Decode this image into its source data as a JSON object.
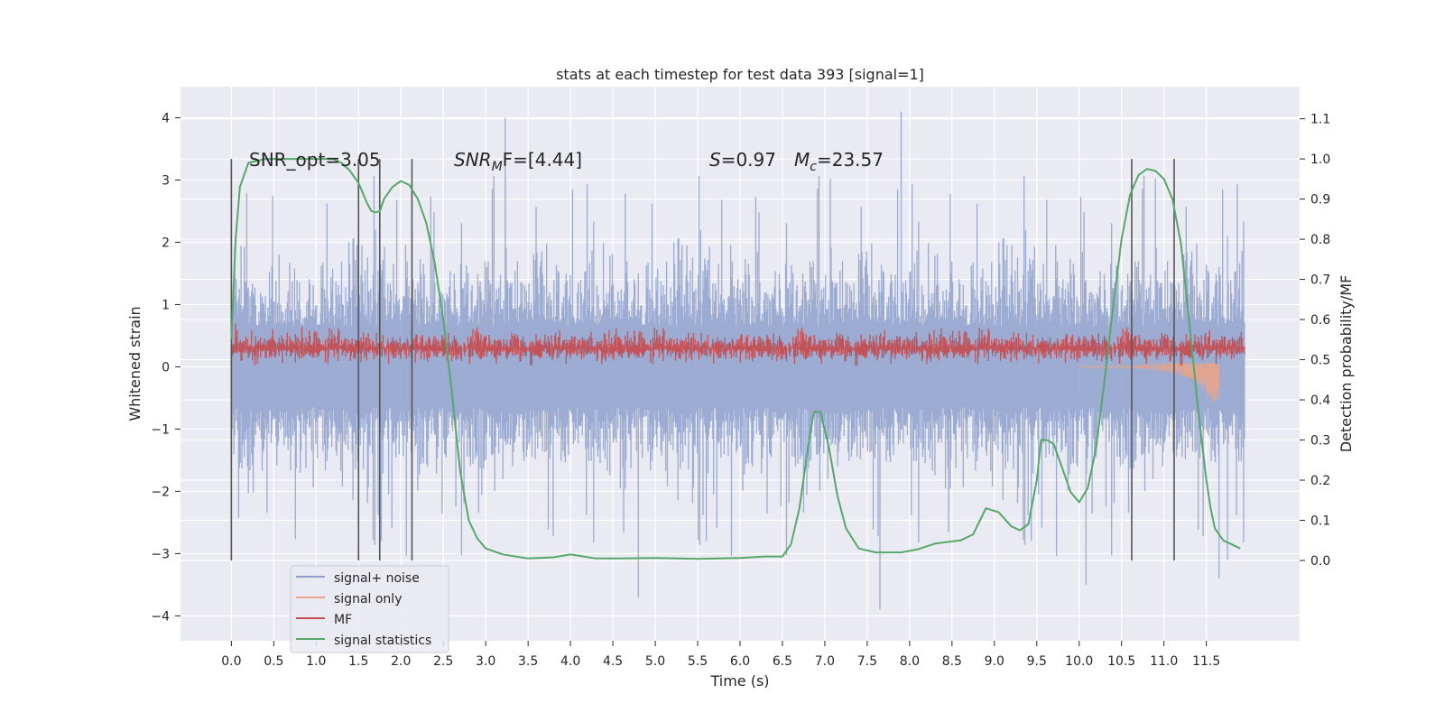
{
  "chart_data": {
    "type": "line",
    "title": "stats at each timestep for test data 393 [signal=1]",
    "xlabel": "Time (s)",
    "ylabel_left": "Whitened strain",
    "ylabel_right": "Detection probability/MF",
    "xlim": [
      -0.6,
      12.6
    ],
    "ylim_left": [
      -4.4,
      4.5
    ],
    "ylim_right": [
      -0.2,
      1.18
    ],
    "xticks": [
      "0.0",
      "0.5",
      "1.0",
      "1.5",
      "2.0",
      "2.5",
      "3.0",
      "3.5",
      "4.0",
      "4.5",
      "5.0",
      "5.5",
      "6.0",
      "6.5",
      "7.0",
      "7.5",
      "8.0",
      "8.5",
      "9.0",
      "9.5",
      "10.0",
      "10.5",
      "11.0",
      "11.5"
    ],
    "yticks_left": [
      "4",
      "3",
      "2",
      "1",
      "0",
      "−1",
      "−2",
      "−3",
      "−4"
    ],
    "yticks_right": [
      "1.1",
      "1.0",
      "0.9",
      "0.8",
      "0.7",
      "0.6",
      "0.5",
      "0.4",
      "0.3",
      "0.2",
      "0.1",
      "0.0"
    ],
    "grid": true,
    "legend_placement": "lower-left",
    "colors": {
      "signal_noise": "#8da0cb",
      "signal_only": "#e8a58a",
      "mf": "#c44e52",
      "signal_statistics": "#55a868",
      "background": "#eaeaf2"
    },
    "annotations": {
      "snr_opt": "SNR_opt=3.05",
      "snr_mf_base": "SNR",
      "snr_mf_sub": "M",
      "snr_mf_rest": "F=[4.44]",
      "s_label": "S",
      "s_value": "=0.97",
      "mc_base": "M",
      "mc_sub": "c",
      "mc_value": "=23.57"
    },
    "vertical_lines_x": [
      0.0,
      1.5,
      1.75,
      2.13,
      10.62,
      11.12
    ],
    "series": [
      {
        "name": "signal+ noise",
        "kind": "band",
        "x_range": [
          0.0,
          11.95
        ],
        "typical_range": [
          -1.3,
          1.3
        ],
        "peak_max": 4.1,
        "peak_min": -3.9
      },
      {
        "name": "signal only",
        "kind": "chirp",
        "x_range": [
          10.0,
          11.65
        ],
        "min": -0.65
      },
      {
        "name": "MF",
        "kind": "band",
        "x_range": [
          0.0,
          11.95
        ],
        "typical_range": [
          0.1,
          0.5
        ],
        "peak_max": 0.95
      },
      {
        "name": "signal statistics",
        "kind": "line",
        "x": [
          0.0,
          0.05,
          0.1,
          0.2,
          0.4,
          0.8,
          1.0,
          1.2,
          1.3,
          1.4,
          1.5,
          1.6,
          1.65,
          1.7,
          1.75,
          1.8,
          1.9,
          2.0,
          2.1,
          2.2,
          2.3,
          2.4,
          2.5,
          2.6,
          2.7,
          2.8,
          2.9,
          3.0,
          3.2,
          3.5,
          3.8,
          4.0,
          4.3,
          4.6,
          5.0,
          5.5,
          6.0,
          6.3,
          6.5,
          6.6,
          6.7,
          6.8,
          6.87,
          6.95,
          7.05,
          7.15,
          7.25,
          7.4,
          7.6,
          7.9,
          8.1,
          8.3,
          8.6,
          8.75,
          8.9,
          9.05,
          9.2,
          9.3,
          9.4,
          9.5,
          9.55,
          9.62,
          9.7,
          9.8,
          9.9,
          10.0,
          10.1,
          10.2,
          10.3,
          10.4,
          10.5,
          10.6,
          10.7,
          10.8,
          10.9,
          11.0,
          11.1,
          11.2,
          11.3,
          11.4,
          11.5,
          11.55,
          11.6,
          11.7,
          11.8,
          11.9
        ],
        "y": [
          0.55,
          0.8,
          0.93,
          0.99,
          1.0,
          1.0,
          1.0,
          1.0,
          0.99,
          0.97,
          0.94,
          0.89,
          0.87,
          0.867,
          0.87,
          0.9,
          0.93,
          0.945,
          0.935,
          0.9,
          0.84,
          0.74,
          0.6,
          0.42,
          0.22,
          0.1,
          0.055,
          0.03,
          0.015,
          0.005,
          0.008,
          0.015,
          0.005,
          0.005,
          0.006,
          0.004,
          0.006,
          0.01,
          0.01,
          0.04,
          0.13,
          0.28,
          0.37,
          0.37,
          0.28,
          0.16,
          0.08,
          0.03,
          0.02,
          0.02,
          0.028,
          0.042,
          0.05,
          0.065,
          0.13,
          0.12,
          0.085,
          0.075,
          0.09,
          0.2,
          0.3,
          0.3,
          0.29,
          0.23,
          0.17,
          0.145,
          0.18,
          0.28,
          0.45,
          0.63,
          0.8,
          0.91,
          0.96,
          0.975,
          0.97,
          0.95,
          0.9,
          0.79,
          0.59,
          0.38,
          0.2,
          0.13,
          0.08,
          0.05,
          0.04,
          0.03
        ]
      }
    ],
    "legend": [
      "signal+ noise",
      "signal only",
      "MF",
      "signal statistics"
    ]
  }
}
